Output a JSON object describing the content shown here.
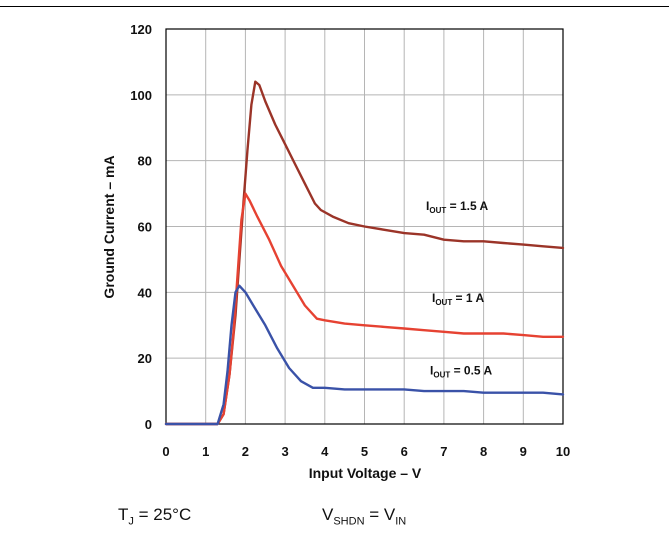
{
  "chart_data": {
    "type": "line",
    "xlabel": "Input Voltage – V",
    "ylabel": "Ground Current – mA",
    "xlim": [
      0,
      10
    ],
    "ylim": [
      0,
      120
    ],
    "xticks": [
      "0",
      "1",
      "2",
      "3",
      "4",
      "5",
      "6",
      "7",
      "8",
      "9",
      "10"
    ],
    "yticks": [
      "0",
      "20",
      "40",
      "60",
      "80",
      "100",
      "120"
    ],
    "grid": true,
    "series": [
      {
        "label_main": "I",
        "label_sub": "OUT",
        "label_rest": " = 1.5 A",
        "label_x": 6.55,
        "label_y": 65,
        "color": "#9b3428",
        "x": [
          0,
          1.3,
          1.45,
          1.6,
          1.75,
          1.85,
          1.95,
          2.05,
          2.15,
          2.25,
          2.35,
          2.5,
          2.75,
          3.0,
          3.25,
          3.5,
          3.75,
          3.9,
          4.2,
          4.6,
          5.0,
          5.5,
          6.0,
          6.5,
          7.0,
          7.5,
          8.0,
          8.5,
          9.0,
          9.5,
          10.0
        ],
        "y": [
          0,
          0,
          3,
          15,
          33,
          50,
          67,
          83,
          97,
          104,
          103,
          98,
          91,
          85,
          79,
          73,
          67,
          65,
          63,
          61,
          60,
          59,
          58,
          57.5,
          56,
          55.5,
          55.5,
          55,
          54.5,
          54,
          53.5
        ]
      },
      {
        "label_main": "I",
        "label_sub": "OUT",
        "label_rest": " = 1 A",
        "label_x": 6.7,
        "label_y": 37,
        "color": "#e64232",
        "x": [
          0,
          1.3,
          1.45,
          1.6,
          1.7,
          1.8,
          1.9,
          2.0,
          2.1,
          2.3,
          2.6,
          2.9,
          3.2,
          3.5,
          3.8,
          4.0,
          4.5,
          5.0,
          5.5,
          6.0,
          6.5,
          7.0,
          7.5,
          8.0,
          8.5,
          9.0,
          9.5,
          10.0
        ],
        "y": [
          0,
          0,
          3,
          15,
          28,
          45,
          62,
          70,
          68,
          63,
          56,
          48,
          42,
          36,
          32,
          31.5,
          30.5,
          30,
          29.5,
          29,
          28.5,
          28,
          27.5,
          27.5,
          27.5,
          27,
          26.5,
          26.5
        ]
      },
      {
        "label_main": "I",
        "label_sub": "OUT",
        "label_rest": " = 0.5 A",
        "label_x": 6.65,
        "label_y": 15,
        "color": "#3a52a8",
        "x": [
          0,
          1.3,
          1.45,
          1.55,
          1.65,
          1.75,
          1.85,
          2.0,
          2.2,
          2.5,
          2.8,
          3.1,
          3.4,
          3.7,
          4.0,
          4.5,
          5.0,
          5.5,
          6.0,
          6.5,
          7.0,
          7.5,
          8.0,
          8.5,
          9.0,
          9.5,
          10.0
        ],
        "y": [
          0,
          0,
          6,
          16,
          30,
          40,
          42,
          40,
          36,
          30,
          23,
          17,
          13,
          11,
          11,
          10.5,
          10.5,
          10.5,
          10.5,
          10,
          10,
          10,
          9.5,
          9.5,
          9.5,
          9.5,
          9
        ]
      }
    ]
  },
  "conditions": {
    "tj_main": "T",
    "tj_sub": "J",
    "tj_rest": " = 25°C",
    "vshdn_main": "V",
    "vshdn_sub": "SHDN",
    "vshdn_mid": " = V",
    "vin_sub": "IN"
  }
}
